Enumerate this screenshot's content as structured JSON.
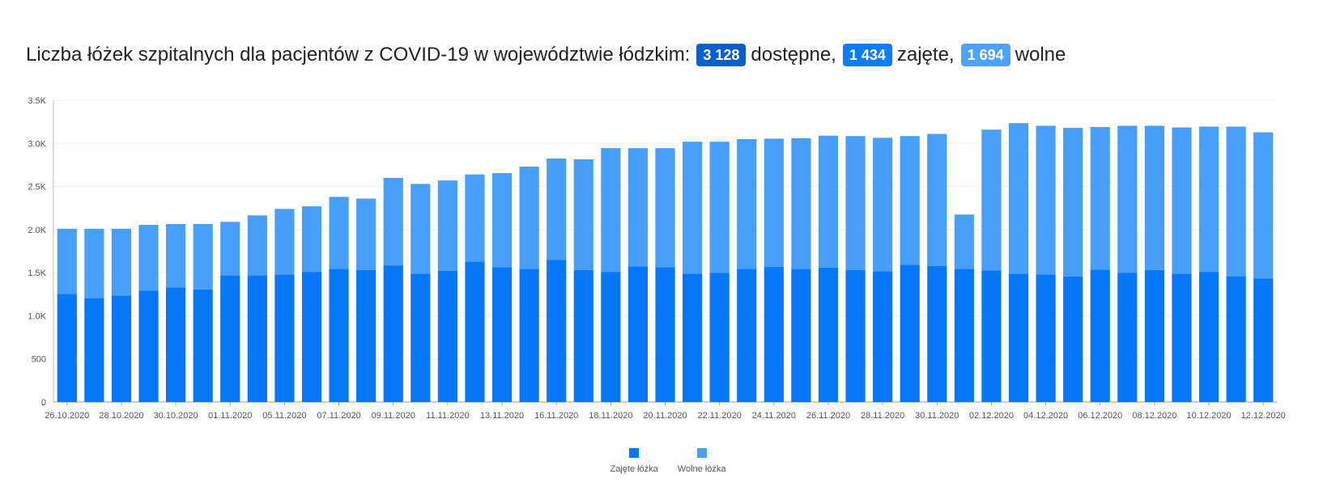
{
  "header": {
    "title_text": "Liczba łóżek szpitalnych dla pacjentów z COVID-19 w województwie łódzkim:",
    "available_value": "3 128",
    "available_label": "dostępne,",
    "occupied_value": "1 434",
    "occupied_label": "zajęte,",
    "free_value": "1 694",
    "free_label": "wolne"
  },
  "colors": {
    "occupied": "#0677f7",
    "free": "#479ff9"
  },
  "chart_data": {
    "type": "bar",
    "stacked": true,
    "x": [
      "26.10.2020",
      "27.10.2020",
      "28.10.2020",
      "29.10.2020",
      "30.10.2020",
      "31.10.2020",
      "01.11.2020",
      "02.11.2020",
      "05.11.2020",
      "06.11.2020",
      "07.11.2020",
      "08.11.2020",
      "09.11.2020",
      "10.11.2020",
      "11.11.2020",
      "12.11.2020",
      "13.11.2020",
      "14.11.2020",
      "16.11.2020",
      "17.11.2020",
      "18.11.2020",
      "19.11.2020",
      "20.11.2020",
      "21.11.2020",
      "22.11.2020",
      "23.11.2020",
      "24.11.2020",
      "25.11.2020",
      "26.11.2020",
      "27.11.2020",
      "28.11.2020",
      "29.11.2020",
      "30.11.2020",
      "01.12.2020",
      "02.12.2020",
      "03.12.2020",
      "04.12.2020",
      "05.12.2020",
      "06.12.2020",
      "07.12.2020",
      "08.12.2020",
      "09.12.2020",
      "10.12.2020",
      "11.12.2020",
      "12.12.2020"
    ],
    "x_tick_labels": [
      "26.10.2020",
      "28.10.2020",
      "30.10.2020",
      "01.11.2020",
      "05.11.2020",
      "07.11.2020",
      "09.11.2020",
      "11.11.2020",
      "13.11.2020",
      "16.11.2020",
      "18.11.2020",
      "20.11.2020",
      "22.11.2020",
      "24.11.2020",
      "26.11.2020",
      "28.11.2020",
      "30.11.2020",
      "02.12.2020",
      "04.12.2020",
      "06.12.2020",
      "08.12.2020",
      "10.12.2020",
      "12.12.2020"
    ],
    "series": [
      {
        "name": "Zajęte łóżka",
        "values": [
          1255,
          1205,
          1235,
          1290,
          1330,
          1305,
          1470,
          1470,
          1480,
          1510,
          1545,
          1530,
          1585,
          1490,
          1520,
          1630,
          1565,
          1545,
          1650,
          1530,
          1510,
          1575,
          1565,
          1490,
          1500,
          1545,
          1570,
          1545,
          1560,
          1530,
          1515,
          1590,
          1580,
          1545,
          1525,
          1490,
          1480,
          1455,
          1535,
          1500,
          1530,
          1490,
          1510,
          1460,
          1434
        ]
      },
      {
        "name": "Wolne łóżka",
        "values": [
          755,
          805,
          775,
          765,
          735,
          760,
          620,
          695,
          760,
          760,
          835,
          830,
          1015,
          1040,
          1050,
          1010,
          1090,
          1185,
          1175,
          1285,
          1435,
          1370,
          1380,
          1530,
          1520,
          1505,
          1485,
          1515,
          1530,
          1555,
          1550,
          1495,
          1530,
          630,
          1635,
          1745,
          1725,
          1725,
          1655,
          1705,
          1675,
          1695,
          1685,
          1735,
          1694
        ]
      }
    ],
    "yticks": [
      0,
      500,
      1000,
      1500,
      2000,
      2500,
      3000,
      3500
    ],
    "ytick_labels": [
      "0",
      "500",
      "1.0K",
      "1.5K",
      "2.0K",
      "2.5K",
      "3.0K",
      "3.5K"
    ],
    "ylim": [
      0,
      3500
    ],
    "legend_position": "bottom-center"
  },
  "legend": {
    "occupied_label": "Zajęte łóżka",
    "free_label": "Wolne łóżka"
  }
}
